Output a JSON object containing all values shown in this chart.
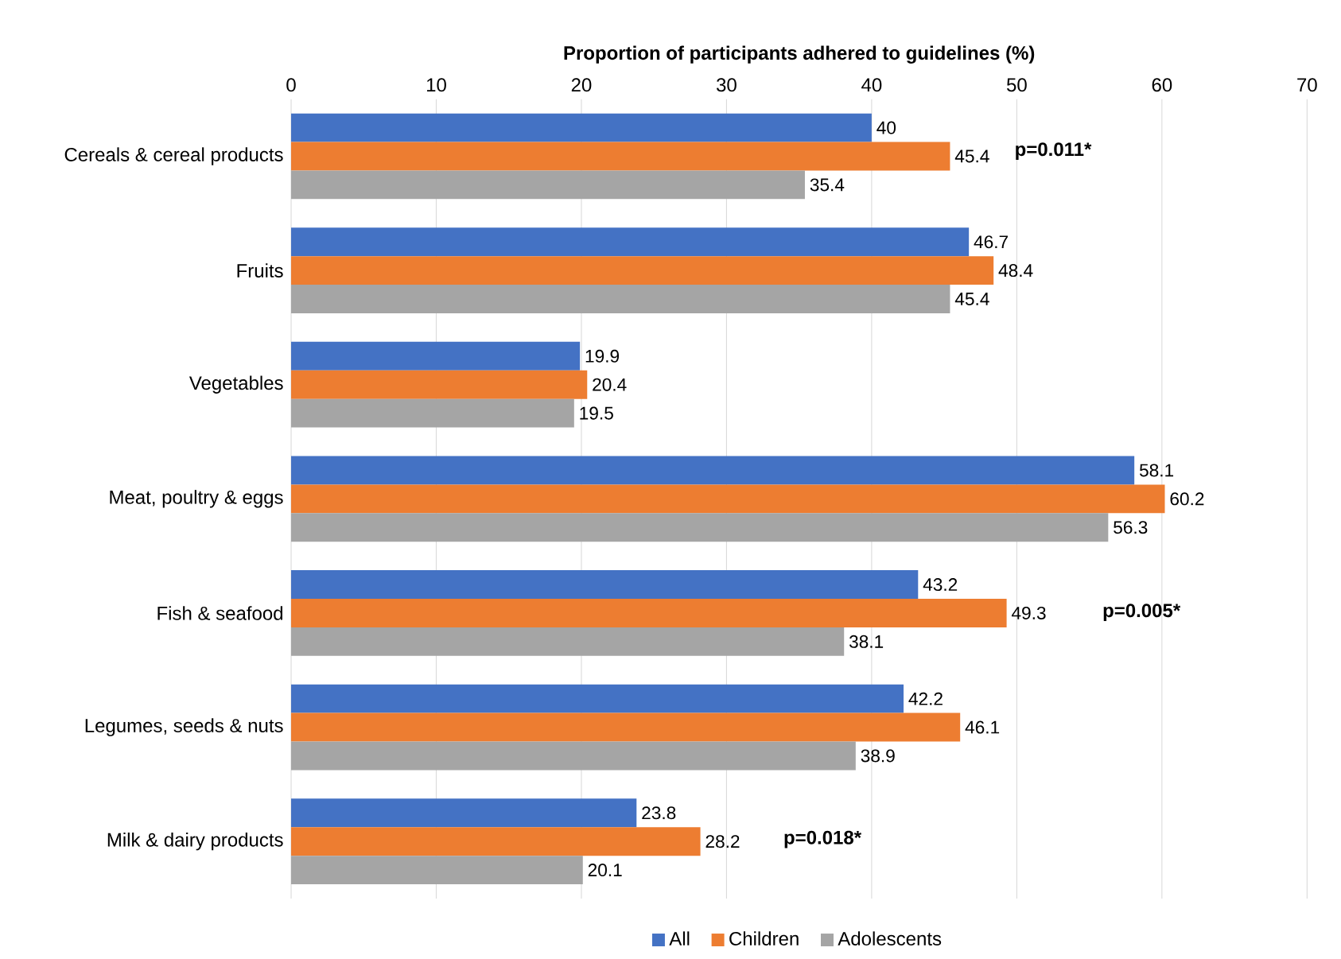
{
  "chart_data": {
    "type": "bar",
    "orientation": "horizontal",
    "xlabel": "Proportion of participants adhered to guidelines (%)",
    "categories": [
      "Cereals & cereal products",
      "Fruits",
      "Vegetables",
      "Meat, poultry & eggs",
      "Fish & seafood",
      "Legumes, seeds & nuts",
      "Milk & dairy products"
    ],
    "series": [
      {
        "name": "All",
        "color": "#4472c4",
        "values": [
          40,
          46.7,
          19.9,
          58.1,
          43.2,
          42.2,
          23.8
        ]
      },
      {
        "name": "Children",
        "color": "#ed7d31",
        "values": [
          45.4,
          48.4,
          20.4,
          60.2,
          49.3,
          46.1,
          28.2
        ]
      },
      {
        "name": "Adolescents",
        "color": "#a5a5a5",
        "values": [
          35.4,
          45.4,
          19.5,
          56.3,
          38.1,
          38.9,
          20.1
        ]
      }
    ],
    "xlim": [
      0,
      70
    ],
    "xticks": [
      0,
      10,
      20,
      30,
      40,
      50,
      60,
      70
    ],
    "grid": "x",
    "legend": "bottom",
    "data_labels": true,
    "annotations": [
      "p=0.011*",
      "p=0.005*",
      "p=0.018*"
    ]
  }
}
